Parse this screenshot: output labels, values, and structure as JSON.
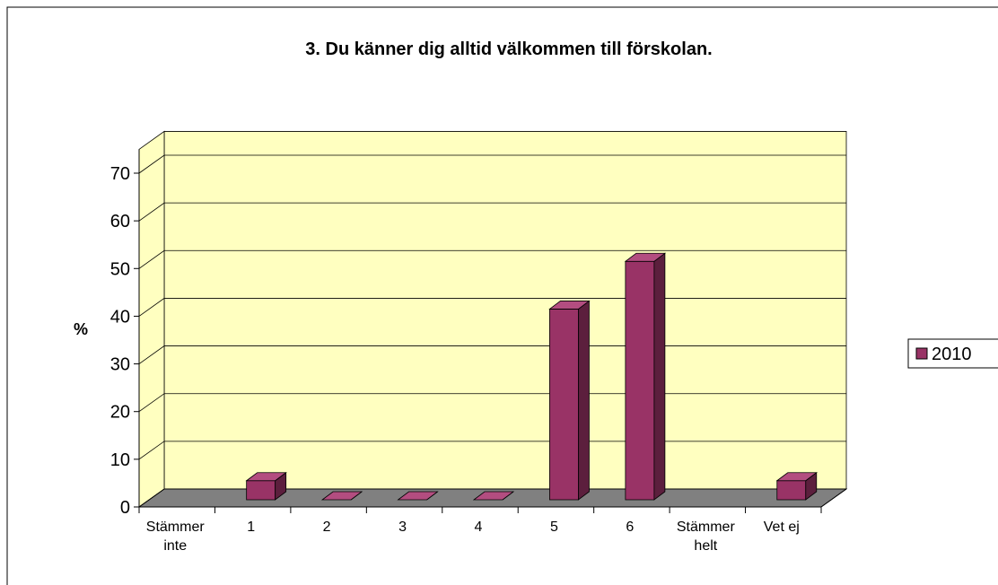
{
  "chart_data": {
    "type": "bar3d",
    "title": "3. Du känner dig alltid välkommen till förskolan.",
    "y_label": "%",
    "categories": [
      "Stämmer inte",
      "1",
      "2",
      "3",
      "4",
      "5",
      "6",
      "Stämmer helt",
      "Vet ej"
    ],
    "series": [
      {
        "name": "2010",
        "color": "#993366",
        "values": [
          null,
          4,
          0,
          0,
          0,
          40,
          50,
          null,
          4
        ]
      }
    ],
    "ylim": [
      0,
      75
    ],
    "yticks": [
      0,
      10,
      20,
      30,
      40,
      50,
      60,
      70
    ],
    "grid": true,
    "legend": "right"
  }
}
